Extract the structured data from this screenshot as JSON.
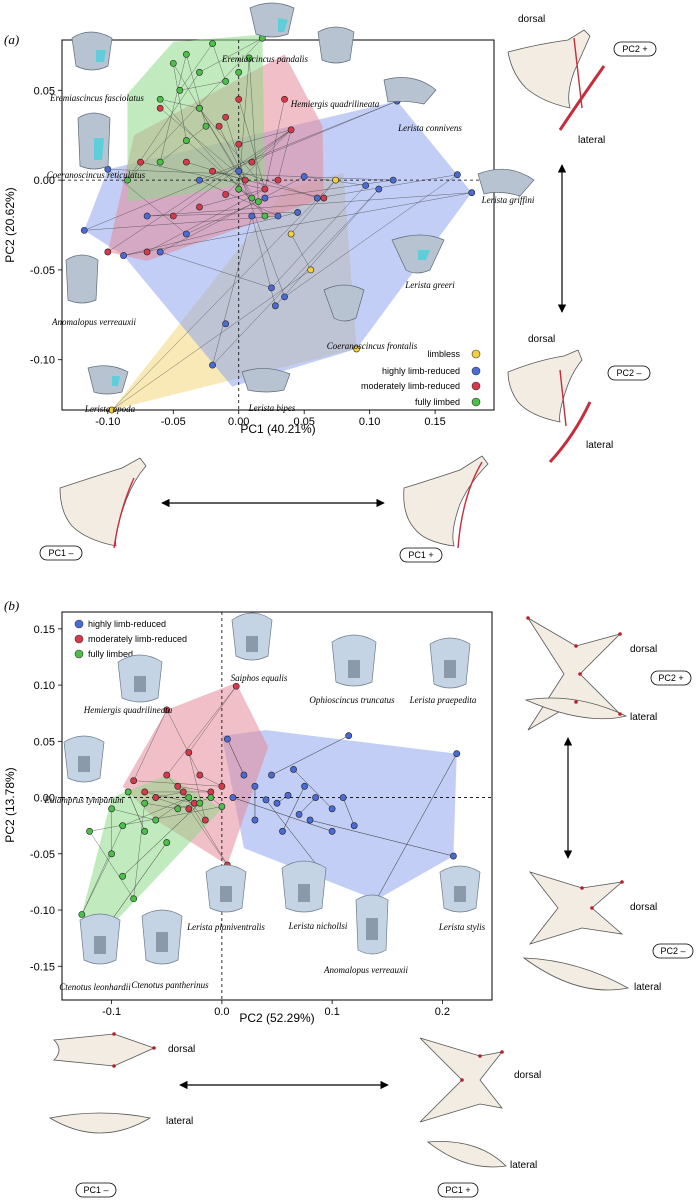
{
  "chart_data": [
    {
      "type": "scatter",
      "panel_label": "(a)",
      "xlabel": "PC1 (40.21%)",
      "ylabel": "PC2 (20.62%)",
      "xlim": [
        -0.135,
        0.195
      ],
      "ylim": [
        -0.128,
        0.078
      ],
      "xticks": [
        -0.1,
        -0.05,
        0,
        0.05,
        0.1,
        0.15
      ],
      "xtick_labels": [
        "-0.10",
        "-0.05",
        "0.00",
        "0.05",
        "0.10",
        "0.15"
      ],
      "yticks": [
        -0.1,
        -0.05,
        0,
        0.05
      ],
      "ytick_labels": [
        "-0.10",
        "-0.05",
        "0.00",
        "0.05"
      ],
      "legend_position": "bottom-right",
      "series": [
        {
          "name": "limbless",
          "color": "#f2cf3e",
          "hull_color": "#f3d77a",
          "points": [
            [
              -0.097,
              -0.128
            ],
            [
              0.074,
              0.0
            ],
            [
              0.09,
              -0.094
            ],
            [
              0.055,
              -0.05
            ],
            [
              0.04,
              -0.03
            ]
          ],
          "hull": [
            [
              -0.097,
              -0.128
            ],
            [
              0.09,
              -0.094
            ],
            [
              0.08,
              0.004
            ],
            [
              0.036,
              -0.005
            ]
          ]
        },
        {
          "name": "highly limb-reduced",
          "color": "#4a6bd6",
          "hull_color": "#8fa5ec",
          "points": [
            [
              -0.118,
              -0.028
            ],
            [
              0.167,
              0.003
            ],
            [
              0.178,
              -0.007
            ],
            [
              0.121,
              0.044
            ],
            [
              0.118,
              0.0
            ],
            [
              0.107,
              -0.005
            ],
            [
              -0.1,
              0.006
            ],
            [
              -0.088,
              -0.042
            ],
            [
              0.097,
              -0.003
            ],
            [
              0.05,
              0.002
            ],
            [
              0.06,
              -0.01
            ],
            [
              0.028,
              -0.07
            ],
            [
              -0.01,
              -0.08
            ],
            [
              -0.02,
              -0.103
            ],
            [
              0.035,
              -0.065
            ],
            [
              0.025,
              -0.06
            ],
            [
              -0.06,
              -0.04
            ],
            [
              -0.07,
              -0.02
            ],
            [
              0.02,
              -0.01
            ],
            [
              0.01,
              -0.02
            ],
            [
              -0.04,
              -0.03
            ],
            [
              0.03,
              -0.02
            ],
            [
              0.045,
              -0.018
            ],
            [
              0.0,
              0.005
            ],
            [
              -0.03,
              0.0
            ]
          ],
          "hull": [
            [
              -0.118,
              -0.028
            ],
            [
              -0.1,
              0.006
            ],
            [
              0.121,
              0.044
            ],
            [
              0.167,
              0.003
            ],
            [
              0.178,
              -0.007
            ],
            [
              0.09,
              -0.094
            ],
            [
              -0.005,
              -0.115
            ],
            [
              -0.088,
              -0.042
            ]
          ]
        },
        {
          "name": "moderately limb-reduced",
          "color": "#d63a4a",
          "hull_color": "#e58a9a",
          "points": [
            [
              -0.1,
              -0.04
            ],
            [
              -0.07,
              -0.04
            ],
            [
              0.065,
              -0.01
            ],
            [
              0.04,
              0.028
            ],
            [
              0.035,
              0.045
            ],
            [
              -0.06,
              0.04
            ],
            [
              0.0,
              0.02
            ],
            [
              -0.03,
              -0.015
            ],
            [
              -0.02,
              0.005
            ],
            [
              0.01,
              0.01
            ],
            [
              0.02,
              -0.005
            ],
            [
              -0.04,
              0.01
            ],
            [
              -0.05,
              -0.02
            ],
            [
              0.0,
              0.045
            ],
            [
              -0.015,
              0.03
            ],
            [
              0.03,
              0.0
            ],
            [
              -0.03,
              0.04
            ],
            [
              0.005,
              0.0
            ],
            [
              -0.01,
              -0.008
            ],
            [
              -0.075,
              0.01
            ],
            [
              -0.01,
              0.035
            ]
          ],
          "hull": [
            [
              -0.1,
              -0.04
            ],
            [
              -0.07,
              -0.045
            ],
            [
              0.065,
              -0.01
            ],
            [
              0.064,
              0.03
            ],
            [
              0.035,
              0.07
            ],
            [
              -0.08,
              0.025
            ]
          ]
        },
        {
          "name": "fully limbed",
          "color": "#4cbf48",
          "hull_color": "#8fd88a",
          "points": [
            [
              -0.085,
              0.0
            ],
            [
              -0.04,
              0.07
            ],
            [
              -0.02,
              0.076
            ],
            [
              0.018,
              0.079
            ],
            [
              -0.05,
              0.065
            ],
            [
              -0.03,
              0.06
            ],
            [
              -0.06,
              0.045
            ],
            [
              -0.03,
              0.04
            ],
            [
              -0.01,
              0.055
            ],
            [
              0.0,
              0.06
            ],
            [
              -0.025,
              0.03
            ],
            [
              -0.04,
              0.022
            ],
            [
              0.01,
              -0.01
            ],
            [
              0.015,
              -0.012
            ],
            [
              0.02,
              -0.02
            ],
            [
              0.0,
              -0.005
            ],
            [
              -0.06,
              0.01
            ],
            [
              -0.045,
              0.05
            ],
            [
              0.008,
              0.068
            ]
          ],
          "hull": [
            [
              -0.085,
              -0.012
            ],
            [
              -0.085,
              0.048
            ],
            [
              -0.05,
              0.077
            ],
            [
              0.018,
              0.081
            ],
            [
              0.02,
              0.0
            ],
            [
              -0.04,
              -0.008
            ]
          ]
        }
      ],
      "annotations": [
        "Eremiascincus pandalis",
        "Eremiascincus fasciolatus",
        "Hemiergis quadrilineata",
        "Lerista connivens",
        "Coeranoscincus reticulatus",
        "Lerista griffini",
        "Lerista greeri",
        "Anomalopus verreauxii",
        "Coeranoscincus frontalis",
        "Lerista apoda",
        "Lerista bipes"
      ]
    },
    {
      "type": "scatter",
      "panel_label": "(b)",
      "xlabel": "PC2 (52.29%)",
      "ylabel": "PC2 (13.78%)",
      "xlim": [
        -0.145,
        0.245
      ],
      "ylim": [
        -0.18,
        0.165
      ],
      "xticks": [
        -0.1,
        0,
        0.1,
        0.2
      ],
      "xtick_labels": [
        "-0.1",
        "0.0",
        "0.1",
        "0.2"
      ],
      "yticks": [
        -0.15,
        -0.1,
        -0.05,
        0,
        0.05,
        0.1,
        0.15
      ],
      "ytick_labels": [
        "-0.15",
        "-0.10",
        "-0.05",
        "0.00",
        "0.05",
        "0.10",
        "0.15"
      ],
      "legend_position": "top-left",
      "series": [
        {
          "name": "highly limb-reduced",
          "color": "#4a6bd6",
          "hull_color": "#8fa5ec",
          "points": [
            [
              0.213,
              0.039
            ],
            [
              0.21,
              -0.052
            ],
            [
              0.115,
              0.055
            ],
            [
              0.14,
              -0.091
            ],
            [
              0.09,
              -0.065
            ],
            [
              0.005,
              0.052
            ],
            [
              0.03,
              0.01
            ],
            [
              0.04,
              -0.002
            ],
            [
              0.06,
              0.002
            ],
            [
              0.07,
              -0.015
            ],
            [
              0.08,
              -0.02
            ],
            [
              0.05,
              -0.005
            ],
            [
              0.1,
              -0.03
            ],
            [
              0.12,
              -0.025
            ],
            [
              0.02,
              0.02
            ],
            [
              0.01,
              0.0
            ],
            [
              0.065,
              0.025
            ],
            [
              0.045,
              0.02
            ],
            [
              0.085,
              0.0
            ],
            [
              0.1,
              -0.01
            ],
            [
              0.055,
              -0.03
            ],
            [
              0.03,
              -0.02
            ],
            [
              0.11,
              0.0
            ],
            [
              0.075,
              0.01
            ]
          ],
          "hull": [
            [
              0.0,
              0.055
            ],
            [
              0.04,
              0.06
            ],
            [
              0.213,
              0.039
            ],
            [
              0.21,
              -0.052
            ],
            [
              0.14,
              -0.091
            ],
            [
              0.02,
              -0.045
            ]
          ]
        },
        {
          "name": "moderately limb-reduced",
          "color": "#d63a4a",
          "hull_color": "#e58a9a",
          "points": [
            [
              -0.05,
              0.078
            ],
            [
              0.013,
              0.099
            ],
            [
              -0.03,
              0.04
            ],
            [
              -0.02,
              0.02
            ],
            [
              -0.04,
              0.01
            ],
            [
              -0.06,
              0.0
            ],
            [
              -0.03,
              -0.01
            ],
            [
              -0.01,
              0.005
            ],
            [
              0.0,
              0.01
            ],
            [
              -0.015,
              -0.02
            ],
            [
              -0.05,
              0.02
            ],
            [
              -0.08,
              0.015
            ],
            [
              -0.07,
              0.005
            ],
            [
              0.005,
              -0.06
            ],
            [
              -0.035,
              0.005
            ],
            [
              -0.025,
              -0.005
            ]
          ],
          "hull": [
            [
              -0.05,
              0.078
            ],
            [
              0.013,
              0.102
            ],
            [
              0.042,
              0.045
            ],
            [
              0.005,
              -0.06
            ],
            [
              -0.06,
              -0.02
            ],
            [
              -0.09,
              0.01
            ]
          ]
        },
        {
          "name": "fully limbed",
          "color": "#4cbf48",
          "hull_color": "#8fd88a",
          "points": [
            [
              -0.127,
              -0.104
            ],
            [
              -0.108,
              -0.12
            ],
            [
              -0.12,
              -0.03
            ],
            [
              -0.1,
              -0.05
            ],
            [
              -0.09,
              -0.07
            ],
            [
              -0.08,
              -0.09
            ],
            [
              -0.1,
              -0.01
            ],
            [
              -0.085,
              0.005
            ],
            [
              -0.07,
              -0.005
            ],
            [
              -0.06,
              -0.02
            ],
            [
              -0.05,
              -0.04
            ],
            [
              -0.04,
              -0.01
            ],
            [
              -0.03,
              0.0
            ],
            [
              -0.02,
              -0.005
            ],
            [
              -0.01,
              0.0
            ],
            [
              -0.09,
              -0.025
            ],
            [
              -0.07,
              -0.03
            ],
            [
              0.0,
              -0.008
            ]
          ],
          "hull": [
            [
              -0.127,
              -0.104
            ],
            [
              -0.108,
              -0.122
            ],
            [
              0.0,
              -0.01
            ],
            [
              -0.05,
              0.02
            ],
            [
              -0.1,
              0.0
            ]
          ]
        }
      ],
      "annotations": [
        "Saiphos equalis",
        "Hemiergis quadrilineata",
        "Ophioscincus truncatus",
        "Lerista praepedita",
        "Eulamprus tympanum",
        "Lerista planiventralis",
        "Lerista nichollsi",
        "Anomalopus verreauxii",
        "Lerista stylis",
        "Ctenotus leonhardii",
        "Ctenotus pantherinus"
      ]
    }
  ],
  "shape_labels": {
    "dorsal": "dorsal",
    "lateral": "lateral",
    "pc1_minus": "PC1 –",
    "pc1_plus": "PC1 +",
    "pc2_minus": "PC2 –",
    "pc2_plus": "PC2 +"
  }
}
